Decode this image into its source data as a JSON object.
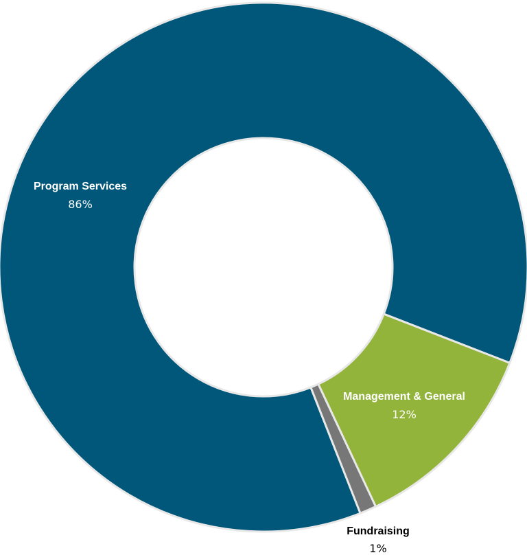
{
  "chart_data": {
    "type": "pie",
    "donut": true,
    "title": "",
    "slices": [
      {
        "label": "Program Services",
        "value": 86,
        "value_label": "86%",
        "color": "#005779",
        "text_color": "#ffffff"
      },
      {
        "label": "Management & General",
        "value": 12,
        "value_label": "12%",
        "color": "#93b43a",
        "text_color": "#ffffff"
      },
      {
        "label": "Fundraising",
        "value": 1,
        "value_label": "1%",
        "color": "#777777",
        "text_color": "#000000"
      }
    ],
    "legend": "none",
    "separator_color": "#e8e8e8"
  }
}
